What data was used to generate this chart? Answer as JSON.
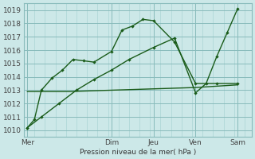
{
  "bg_color": "#cce8e8",
  "grid_minor_color": "#aad4d4",
  "grid_major_color": "#88bbbb",
  "line_color": "#1a5c1a",
  "xlabel": "Pression niveau de la mer( hPa )",
  "ylim": [
    1009.5,
    1019.5
  ],
  "xlim": [
    0,
    130
  ],
  "x_ticks": [
    2,
    50,
    74,
    98,
    122
  ],
  "x_tick_labels": [
    "Mer",
    "Dim",
    "Jeu",
    "Ven",
    "Sam"
  ],
  "y_ticks": [
    1010,
    1011,
    1012,
    1013,
    1014,
    1015,
    1016,
    1017,
    1018,
    1019
  ],
  "lx1": [
    2,
    6,
    10,
    16,
    22,
    28,
    34,
    40,
    50,
    56,
    62,
    68,
    74,
    86,
    98,
    110,
    122
  ],
  "ly1": [
    1010.2,
    1010.8,
    1013.0,
    1013.9,
    1014.5,
    1015.3,
    1015.2,
    1015.1,
    1015.9,
    1017.5,
    1017.8,
    1018.3,
    1018.2,
    1016.6,
    1013.5,
    1013.5,
    1013.5
  ],
  "lx2": [
    2,
    26,
    50,
    74,
    98,
    122
  ],
  "ly2": [
    1012.9,
    1012.9,
    1013.0,
    1013.1,
    1013.2,
    1013.4
  ],
  "lx3": [
    2,
    10,
    20,
    30,
    40,
    50,
    60,
    74,
    86,
    98,
    104,
    110,
    116,
    122
  ],
  "ly3": [
    1010.2,
    1011.0,
    1012.0,
    1013.0,
    1013.8,
    1014.5,
    1015.3,
    1016.2,
    1016.9,
    1012.8,
    1013.5,
    1015.5,
    1017.3,
    1019.1
  ]
}
